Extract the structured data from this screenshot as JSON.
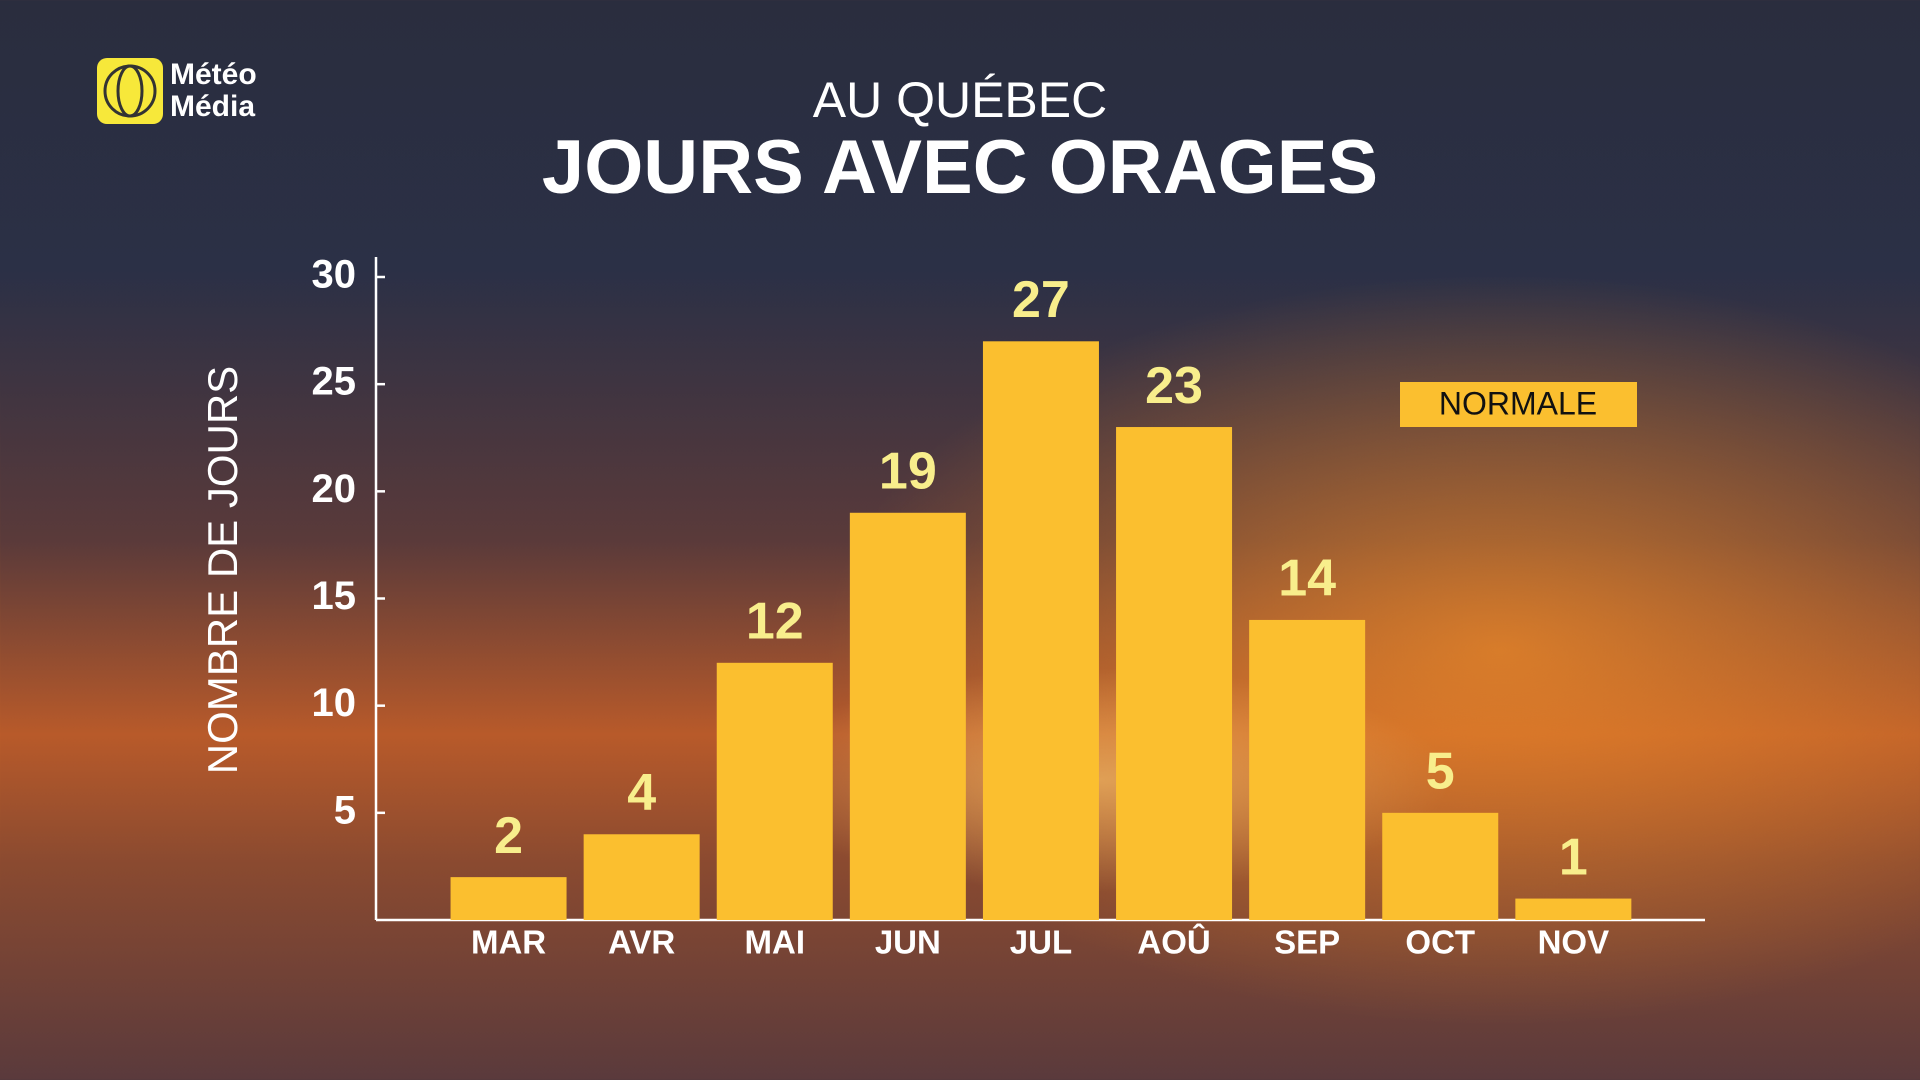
{
  "brand": {
    "line1": "Météo",
    "line2": "Média"
  },
  "chart_data": {
    "type": "bar",
    "subtitle": "AU QUÉBEC",
    "title": "JOURS AVEC ORAGES",
    "y_label": "NOMBRE DE JOURS",
    "categories": [
      "MAR",
      "AVR",
      "MAI",
      "JUN",
      "JUL",
      "AOÛ",
      "SEP",
      "OCT",
      "NOV"
    ],
    "series": [
      {
        "name": "NORMALE",
        "color": "#fbbf2f",
        "values": [
          2,
          4,
          12,
          19,
          27,
          23,
          14,
          5,
          1
        ]
      }
    ],
    "ylim": [
      0,
      30
    ],
    "yticks": [
      5,
      10,
      15,
      20,
      25,
      30
    ],
    "legend": "upper right"
  }
}
